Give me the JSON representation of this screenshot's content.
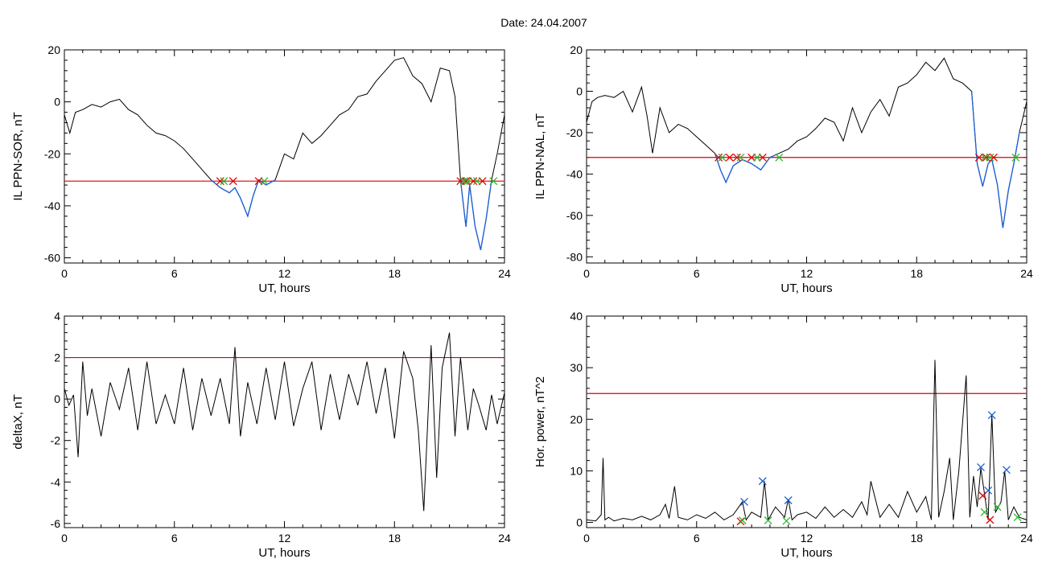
{
  "header": {
    "title": "Date:  24.04.2007"
  },
  "chart_data": [
    {
      "type": "line",
      "id": "sor",
      "xlabel": "UT, hours",
      "ylabel": "IL PPN-SOR, nT",
      "xlim": [
        0,
        24
      ],
      "ylim": [
        -62,
        20
      ],
      "xticks": [
        0,
        6,
        12,
        18,
        24
      ],
      "yticks": [
        20,
        0,
        -20,
        -40,
        -60
      ],
      "threshold": -30.5,
      "colors": {
        "line": "#000000",
        "below": "#1a5fd6",
        "threshold": "#e00000",
        "cross_red": "#e00000",
        "cross_green": "#2fb52f"
      },
      "series": [
        {
          "x": [
            0,
            0.3,
            0.6,
            1,
            1.5,
            2,
            2.5,
            3,
            3.5,
            4,
            4.5,
            5,
            5.5,
            6,
            6.5,
            7,
            7.5,
            8,
            8.5,
            9,
            9.3,
            9.6,
            10,
            10.3,
            10.6,
            11,
            11.5,
            12,
            12.5,
            13,
            13.5,
            14,
            14.5,
            15,
            15.5,
            16,
            16.5,
            17,
            17.5,
            18,
            18.5,
            19,
            19.5,
            20,
            20.5,
            21,
            21.3,
            21.6,
            21.9,
            22.1,
            22.4,
            22.7,
            23,
            23.3,
            23.6,
            24
          ],
          "y": [
            -5,
            -12,
            -4,
            -3,
            -1,
            -2,
            0,
            1,
            -3,
            -5,
            -9,
            -12,
            -13,
            -15,
            -18,
            -22,
            -26,
            -30,
            -33,
            -35,
            -33,
            -37,
            -44,
            -36,
            -30,
            -32,
            -30,
            -20,
            -22,
            -12,
            -16,
            -13,
            -9,
            -5,
            -3,
            2,
            3,
            8,
            12,
            16,
            17,
            10,
            7,
            0,
            13,
            12,
            2,
            -30,
            -48,
            -32,
            -48,
            -57,
            -45,
            -30,
            -20,
            -5
          ]
        }
      ],
      "markers_red_x": [
        8.5,
        9.2,
        10.6,
        21.6,
        21.9,
        22.3,
        22.8
      ],
      "markers_green_x": [
        8.7,
        10.9,
        21.8,
        22.0,
        22.5,
        23.4
      ]
    },
    {
      "type": "line",
      "id": "nal",
      "xlabel": "UT, hours",
      "ylabel": "IL PPN-NAL, nT",
      "xlim": [
        0,
        24
      ],
      "ylim": [
        -83,
        20
      ],
      "xticks": [
        0,
        6,
        12,
        18,
        24
      ],
      "yticks": [
        20,
        0,
        -20,
        -40,
        -60,
        -80
      ],
      "threshold": -32,
      "colors": {
        "line": "#000000",
        "below": "#1a5fd6",
        "threshold": "#e00000",
        "cross_red": "#e00000",
        "cross_green": "#2fb52f"
      },
      "series": [
        {
          "x": [
            0,
            0.3,
            0.6,
            1,
            1.5,
            2,
            2.5,
            3,
            3.3,
            3.6,
            4,
            4.5,
            5,
            5.5,
            6,
            6.5,
            7,
            7.3,
            7.6,
            8,
            8.5,
            9,
            9.5,
            10,
            10.5,
            11,
            11.5,
            12,
            12.5,
            13,
            13.5,
            14,
            14.5,
            15,
            15.5,
            16,
            16.5,
            17,
            17.5,
            18,
            18.5,
            19,
            19.5,
            20,
            20.5,
            21,
            21.3,
            21.6,
            21.9,
            22.1,
            22.4,
            22.7,
            23,
            23.3,
            23.6,
            24
          ],
          "y": [
            -15,
            -5,
            -3,
            -2,
            -3,
            0,
            -10,
            2,
            -12,
            -30,
            -8,
            -20,
            -16,
            -18,
            -22,
            -26,
            -30,
            -38,
            -44,
            -36,
            -33,
            -35,
            -38,
            -32,
            -30,
            -28,
            -24,
            -22,
            -18,
            -13,
            -15,
            -24,
            -8,
            -20,
            -10,
            -4,
            -12,
            2,
            4,
            8,
            14,
            10,
            16,
            6,
            4,
            0,
            -35,
            -46,
            -35,
            -33,
            -45,
            -66,
            -48,
            -35,
            -20,
            -5
          ]
        }
      ],
      "markers_red_x": [
        7.2,
        7.8,
        8.2,
        9.0,
        9.6,
        21.4,
        21.8,
        22.2
      ],
      "markers_green_x": [
        7.4,
        8.4,
        9.3,
        10.5,
        21.7,
        22.0,
        23.4
      ]
    },
    {
      "type": "line",
      "id": "dx",
      "xlabel": "UT, hours",
      "ylabel": "deltaX, nT",
      "xlim": [
        0,
        24
      ],
      "ylim": [
        -6.2,
        4
      ],
      "xticks": [
        0,
        6,
        12,
        18,
        24
      ],
      "yticks": [
        4,
        2,
        0,
        -2,
        -4,
        -6
      ],
      "threshold": 2,
      "colors": {
        "line": "#000000",
        "threshold": "#e00000"
      },
      "series": [
        {
          "x": [
            0,
            0.25,
            0.5,
            0.75,
            1,
            1.25,
            1.5,
            2,
            2.5,
            3,
            3.5,
            4,
            4.5,
            5,
            5.5,
            6,
            6.5,
            7,
            7.5,
            8,
            8.5,
            9,
            9.3,
            9.6,
            10,
            10.5,
            11,
            11.5,
            12,
            12.5,
            13,
            13.5,
            14,
            14.5,
            15,
            15.5,
            16,
            16.5,
            17,
            17.5,
            18,
            18.5,
            19,
            19.3,
            19.6,
            20,
            20.3,
            20.6,
            21,
            21.3,
            21.6,
            22,
            22.3,
            22.6,
            23,
            23.3,
            23.6,
            24
          ],
          "y": [
            0.5,
            -0.3,
            0.2,
            -2.8,
            1.8,
            -0.8,
            0.5,
            -1.8,
            0.8,
            -0.5,
            1.5,
            -1.5,
            1.8,
            -1.2,
            0.2,
            -1.2,
            1.5,
            -1.5,
            1.0,
            -0.8,
            1.0,
            -1.2,
            2.5,
            -1.8,
            0.8,
            -1.2,
            1.5,
            -1.0,
            1.8,
            -1.3,
            0.5,
            1.8,
            -1.5,
            1.2,
            -1.0,
            1.2,
            -0.3,
            1.8,
            -0.7,
            1.5,
            -1.9,
            2.3,
            1.0,
            -1.5,
            -5.4,
            2.6,
            -3.8,
            1.5,
            3.2,
            -1.8,
            2.0,
            -1.5,
            0.5,
            -0.3,
            -1.5,
            0.2,
            -1.2,
            0.3
          ]
        }
      ]
    },
    {
      "type": "line",
      "id": "hp",
      "xlabel": "UT, hours",
      "ylabel": "Hor. power, nT^2",
      "xlim": [
        0,
        24
      ],
      "ylim": [
        -1,
        40
      ],
      "xticks": [
        0,
        6,
        12,
        18,
        24
      ],
      "yticks": [
        40,
        30,
        20,
        10,
        0
      ],
      "threshold": 25,
      "colors": {
        "line": "#000000",
        "threshold": "#e00000",
        "cross_blue": "#1a5fd6",
        "cross_red": "#e00000",
        "cross_green": "#2fb52f"
      },
      "series": [
        {
          "x": [
            0,
            0.5,
            0.8,
            0.9,
            1.0,
            1.2,
            1.5,
            2,
            2.5,
            3,
            3.5,
            4,
            4.3,
            4.5,
            4.8,
            5,
            5.5,
            6,
            6.5,
            7,
            7.5,
            8,
            8.5,
            8.7,
            9,
            9.5,
            9.7,
            9.9,
            10.3,
            10.8,
            11,
            11.2,
            11.5,
            12,
            12.5,
            13,
            13.5,
            14,
            14.5,
            15,
            15.3,
            15.5,
            16,
            16.5,
            17,
            17.5,
            18,
            18.5,
            18.8,
            19,
            19.2,
            19.5,
            19.8,
            20,
            20.3,
            20.7,
            20.9,
            21.1,
            21.3,
            21.5,
            21.7,
            21.9,
            22.1,
            22.3,
            22.6,
            22.8,
            23,
            23.3,
            23.6,
            24
          ],
          "y": [
            0.5,
            0.3,
            1.5,
            12.5,
            0.5,
            1.0,
            0.3,
            0.8,
            0.5,
            1.2,
            0.5,
            1.5,
            3.5,
            0.8,
            7.0,
            1.0,
            0.5,
            1.5,
            0.8,
            2.0,
            0.5,
            1.5,
            4.0,
            0.5,
            2.0,
            1.0,
            8.0,
            0.5,
            3.0,
            1.0,
            4.5,
            0.5,
            1.5,
            2.0,
            0.8,
            3.0,
            1.0,
            2.5,
            1.0,
            4.0,
            1.5,
            8.0,
            1.0,
            3.5,
            1.0,
            6.0,
            2.0,
            5.0,
            0.5,
            31.5,
            1.0,
            6.0,
            12.5,
            0.5,
            10.0,
            28.5,
            1.0,
            9.0,
            3.0,
            10.5,
            5.5,
            0.5,
            21.0,
            2.0,
            4.0,
            10.0,
            0.5,
            3.0,
            1.0,
            0.5
          ]
        }
      ],
      "markers_blue_x": [
        {
          "x": 8.6,
          "y": 4.0
        },
        {
          "x": 9.6,
          "y": 8.0
        },
        {
          "x": 11.0,
          "y": 4.3
        },
        {
          "x": 21.5,
          "y": 10.7
        },
        {
          "x": 21.9,
          "y": 6.2
        },
        {
          "x": 22.1,
          "y": 20.8
        },
        {
          "x": 22.9,
          "y": 10.2
        }
      ],
      "markers_red_x": [
        {
          "x": 21.6,
          "y": 5.2
        },
        {
          "x": 22.0,
          "y": 0.5
        },
        {
          "x": 8.4,
          "y": 0.2
        }
      ],
      "markers_green_x": [
        {
          "x": 8.5,
          "y": 0.4
        },
        {
          "x": 9.9,
          "y": 0.4
        },
        {
          "x": 10.9,
          "y": 0.3
        },
        {
          "x": 21.7,
          "y": 2.0
        },
        {
          "x": 22.4,
          "y": 3.0
        },
        {
          "x": 23.5,
          "y": 1.0
        }
      ]
    }
  ]
}
